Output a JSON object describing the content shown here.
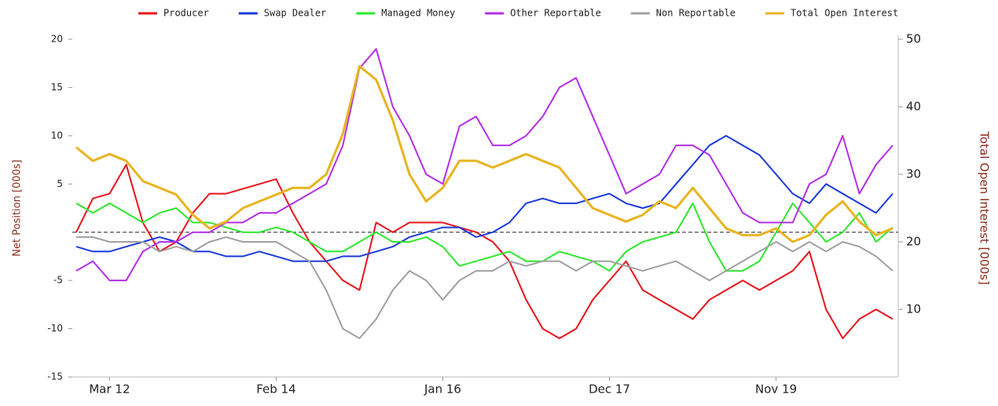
{
  "chart_data": {
    "type": "line",
    "legend": "top",
    "ylabel": "Net Position [000s]",
    "y2label": "Total Open Interest [000s]",
    "ylim": [
      -15,
      20
    ],
    "yticks": [
      -15,
      -10,
      -5,
      5,
      10,
      15,
      20
    ],
    "y2lim": [
      0,
      50
    ],
    "y2ticks": [
      10,
      20,
      30,
      40,
      50
    ],
    "zero_line": true,
    "categories": [
      null,
      null,
      "Mar 12",
      null,
      null,
      null,
      null,
      null,
      null,
      null,
      null,
      null,
      "Feb 14",
      null,
      null,
      null,
      null,
      null,
      null,
      null,
      null,
      null,
      "Jan 16",
      null,
      null,
      null,
      null,
      null,
      null,
      null,
      null,
      null,
      "Dec 17",
      null,
      null,
      null,
      null,
      null,
      null,
      null,
      null,
      null,
      "Nov 19",
      null,
      null,
      null,
      null,
      null,
      null,
      null
    ],
    "series": [
      {
        "name": "Producer",
        "color": "#e8141b",
        "values": [
          0,
          3.5,
          4,
          7,
          1,
          -2,
          -1,
          2,
          4,
          4,
          4.5,
          5,
          5.5,
          2,
          -1,
          -3,
          -5,
          -6,
          1,
          0,
          1,
          1,
          1,
          0.5,
          0,
          -1,
          -3,
          -7,
          -10,
          -11,
          -10,
          -7,
          -5,
          -3,
          -6,
          -7,
          -8,
          -9,
          -7,
          -6,
          -5,
          -6,
          -5,
          -4,
          -2,
          -8,
          -11,
          -9,
          -8,
          -9
        ]
      },
      {
        "name": "Swap Dealer",
        "color": "#1a3adb",
        "values": [
          -1.5,
          -2,
          -2,
          -1.5,
          -1,
          -0.5,
          -1,
          -2,
          -2,
          -2.5,
          -2.5,
          -2,
          -2.5,
          -3,
          -3,
          -3,
          -2.5,
          -2.5,
          -2,
          -1.5,
          -0.5,
          0,
          0.5,
          0.5,
          -0.5,
          0,
          1,
          3,
          3.5,
          3,
          3,
          3.5,
          4,
          3,
          2.5,
          3,
          5,
          7,
          9,
          10,
          9,
          8,
          6,
          4,
          3,
          5,
          4,
          3,
          2,
          4
        ]
      },
      {
        "name": "Managed Money",
        "color": "#2ee82e",
        "values": [
          3,
          2,
          3,
          2,
          1,
          2,
          2.5,
          1,
          1,
          0.5,
          0,
          0,
          0.5,
          0,
          -1,
          -2,
          -2,
          -1,
          0,
          -1,
          -1,
          -0.5,
          -1.5,
          -3.5,
          -3,
          -2.5,
          -2,
          -3,
          -3,
          -2,
          -2.5,
          -3,
          -4,
          -2,
          -1,
          -0.5,
          0,
          3,
          -1,
          -4,
          -4,
          -3,
          0,
          3,
          1,
          -1,
          0,
          2,
          -1,
          0.5
        ]
      },
      {
        "name": "Other Reportable",
        "color": "#b42ee8",
        "values": [
          -4,
          -3,
          -5,
          -5,
          -2,
          -1,
          -1,
          0,
          0,
          1,
          1,
          2,
          2,
          3,
          4,
          5,
          9,
          17,
          19,
          13,
          10,
          6,
          5,
          11,
          12,
          9,
          9,
          10,
          12,
          15,
          16,
          12,
          8,
          4,
          5,
          6,
          9,
          9,
          8,
          5,
          2,
          1,
          1,
          1,
          5,
          6,
          10,
          4,
          7,
          9
        ]
      },
      {
        "name": "Non Reportable",
        "color": "#a0a0a0",
        "values": [
          -0.5,
          -0.5,
          -1,
          -1,
          -1,
          -2,
          -1.5,
          -2,
          -1,
          -0.5,
          -1,
          -1,
          -1,
          -2,
          -3,
          -6,
          -10,
          -11,
          -9,
          -6,
          -4,
          -5,
          -7,
          -5,
          -4,
          -4,
          -3,
          -3.5,
          -3,
          -3,
          -4,
          -3,
          -3,
          -3.5,
          -4,
          -3.5,
          -3,
          -4,
          -5,
          -4,
          -3,
          -2,
          -1,
          -2,
          -1,
          -2,
          -1,
          -1.5,
          -2.5,
          -4
        ]
      },
      {
        "name": "Total Open Interest",
        "color": "#e8b420",
        "axis": "y2",
        "values": [
          34,
          32,
          33,
          32,
          29,
          28,
          27,
          24,
          22,
          23,
          25,
          26,
          27,
          28,
          28,
          30,
          36,
          46,
          44,
          38,
          30,
          26,
          28,
          32,
          32,
          31,
          32,
          33,
          32,
          31,
          28,
          25,
          24,
          23,
          24,
          26,
          25,
          28,
          25,
          22,
          21,
          21,
          22,
          20,
          21,
          24,
          26,
          23,
          21,
          22
        ]
      }
    ]
  }
}
